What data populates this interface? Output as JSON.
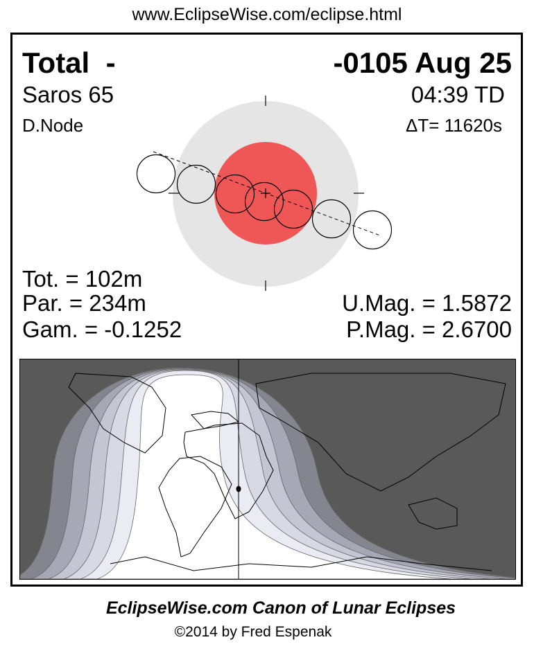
{
  "header_url": "www.EclipseWise.com/eclipse.html",
  "eclipse": {
    "type": "Total",
    "type_suffix": "-",
    "date": "-0105 Aug 25",
    "saros": "Saros  65",
    "time": "04:39 TD",
    "node": "D.Node",
    "delta_t": "ΔT=  11620s"
  },
  "stats": {
    "tot": "Tot. = 102m",
    "par": "Par. = 234m",
    "gam": "Gam. = -0.1252",
    "umag": "U.Mag. = 1.5872",
    "pmag": "P.Mag. = 2.6700"
  },
  "colors": {
    "umbra": "#ef5656",
    "penumbra": "#e5e5e5",
    "map_night": "#595959",
    "map_bands": [
      "#85858f",
      "#a7a7b5",
      "#c5c5d3",
      "#d9d9e5",
      "#ebebf3"
    ],
    "map_day": "#ffffff"
  },
  "footer": {
    "title": "EclipseWise.com Canon of Lunar Eclipses",
    "copyright": "©2014 by Fred Espenak"
  }
}
